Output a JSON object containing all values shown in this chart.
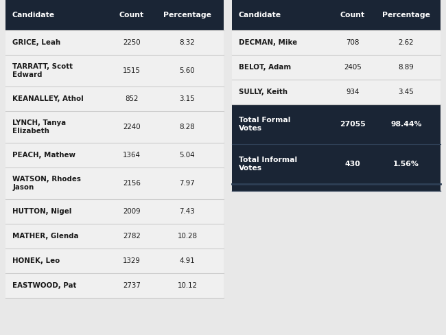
{
  "left_table": {
    "header": [
      "Candidate",
      "Count",
      "Percentage"
    ],
    "rows": [
      [
        "GRICE, Leah",
        "2250",
        "8.32"
      ],
      [
        "TARRATT, Scott\nEdward",
        "1515",
        "5.60"
      ],
      [
        "KEANALLEY, Athol",
        "852",
        "3.15"
      ],
      [
        "LYNCH, Tanya\nElizabeth",
        "2240",
        "8.28"
      ],
      [
        "PEACH, Mathew",
        "1364",
        "5.04"
      ],
      [
        "WATSON, Rhodes\nJason",
        "2156",
        "7.97"
      ],
      [
        "HUTTON, Nigel",
        "2009",
        "7.43"
      ],
      [
        "MATHER, Glenda",
        "2782",
        "10.28"
      ],
      [
        "HONEK, Leo",
        "1329",
        "4.91"
      ],
      [
        "EASTWOOD, Pat",
        "2737",
        "10.12"
      ]
    ]
  },
  "right_table": {
    "header": [
      "Candidate",
      "Count",
      "Percentage"
    ],
    "rows": [
      [
        "DECMAN, Mike",
        "708",
        "2.62"
      ],
      [
        "BELOT, Adam",
        "2405",
        "8.89"
      ],
      [
        "SULLY, Keith",
        "934",
        "3.45"
      ]
    ],
    "summary_rows": [
      [
        "Total Formal\nVotes",
        "27055",
        "98.44%"
      ],
      [
        "Total Informal\nVotes",
        "430",
        "1.56%"
      ]
    ]
  },
  "header_bg": "#1a2535",
  "header_fg": "#ffffff",
  "summary_bg": "#1a2535",
  "summary_fg": "#ffffff",
  "row_bg": "#f0f0f0",
  "divider_color": "#cccccc",
  "text_color": "#1a1a1a",
  "background": "#e8e8e8"
}
